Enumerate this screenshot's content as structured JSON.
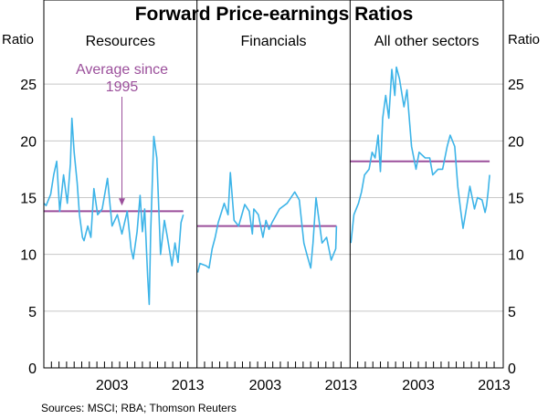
{
  "chart_data": {
    "type": "line",
    "title": "Forward Price-earnings Ratios",
    "ylabel_left": "Ratio",
    "ylabel_right": "Ratio",
    "ylim": [
      0,
      30
    ],
    "yticks": [
      0,
      5,
      10,
      15,
      20,
      25
    ],
    "xlim": [
      1994,
      2014.2
    ],
    "xtick_labels": [
      "2003",
      "2013"
    ],
    "xtick_label_years": [
      2003,
      2013
    ],
    "minor_ticks_years": [
      1995,
      2013
    ],
    "grid": true,
    "colors": {
      "series": "#3db4e8",
      "average": "#9b4f9b",
      "grid": "#c8c8c8"
    },
    "annotation": {
      "lines": [
        "Average since",
        "1995"
      ],
      "panel": 0,
      "arrow_year": 2004.3,
      "arrow_to": 14.3
    },
    "source": "Sources: MSCI; RBA; Thomson Reuters",
    "panels": [
      {
        "name": "Resources",
        "average": 13.8,
        "x": [
          1994.0,
          1994.3,
          1994.9,
          1995.3,
          1995.7,
          1996.1,
          1996.6,
          1997.1,
          1997.5,
          1997.7,
          1998.0,
          1998.4,
          1998.7,
          1999.1,
          1999.3,
          1999.8,
          2000.2,
          2000.6,
          2001.1,
          2001.7,
          2002.4,
          2003.0,
          2003.7,
          2004.3,
          2005.0,
          2005.5,
          2005.8,
          2006.3,
          2006.7,
          2007.0,
          2007.3,
          2007.7,
          2007.9,
          2008.1,
          2008.5,
          2008.9,
          2009.4,
          2009.9,
          2010.3,
          2010.9,
          2011.3,
          2011.7,
          2012.1,
          2012.4
        ],
        "y": [
          14.5,
          14.3,
          15.3,
          17,
          18.2,
          13.8,
          17,
          14.5,
          18,
          22,
          19,
          16.3,
          13.5,
          11.5,
          11.2,
          12.5,
          11.5,
          15.8,
          13.5,
          14,
          16.7,
          12.5,
          13.5,
          11.8,
          13.8,
          10.5,
          9.6,
          12,
          15.2,
          12,
          14,
          8,
          5.6,
          12,
          20.4,
          18.5,
          10,
          13,
          11.5,
          9,
          11,
          9.3,
          12.8,
          13.5
        ]
      },
      {
        "name": "Financials",
        "average": 12.5,
        "x": [
          1994.1,
          1994.4,
          1995.2,
          1995.6,
          1996.0,
          1996.4,
          1996.8,
          1997.6,
          1998.1,
          1998.4,
          1998.9,
          1999.5,
          2000.3,
          2000.9,
          2001.3,
          2001.5,
          2002.1,
          2002.7,
          2003.1,
          2003.5,
          2003.9,
          2004.9,
          2005.9,
          2006.9,
          2007.5,
          2008.1,
          2008.5,
          2009.0,
          2009.3,
          2009.7,
          2010.1,
          2010.5,
          2011.1,
          2011.7,
          2012.3,
          2012.4
        ],
        "y": [
          8.4,
          9.2,
          9,
          8.8,
          10.5,
          11.5,
          12.8,
          14.5,
          13.5,
          17.2,
          13,
          12.5,
          14.4,
          13.8,
          11.8,
          14,
          13.5,
          11.5,
          13,
          12.2,
          12.8,
          14,
          14.5,
          15.5,
          14.8,
          11,
          10,
          8.8,
          11,
          15,
          13,
          11,
          11.5,
          9.5,
          10.5,
          12.5
        ]
      },
      {
        "name": "All other sectors",
        "average": 18.2,
        "x": [
          1994.1,
          1994.5,
          1995.1,
          1995.5,
          1995.9,
          1996.5,
          1996.9,
          1997.3,
          1997.7,
          1998.0,
          1998.3,
          1998.7,
          1999.1,
          1999.5,
          1999.9,
          2000.1,
          2000.5,
          2001.1,
          2001.5,
          2002.1,
          2002.7,
          2003.1,
          2003.9,
          2004.5,
          2004.9,
          2005.6,
          2006.2,
          2006.8,
          2007.2,
          2007.8,
          2008.2,
          2008.6,
          2008.9,
          2009.2,
          2009.8,
          2010.4,
          2010.8,
          2011.4,
          2011.8,
          2012.0,
          2012.2,
          2012.4
        ],
        "y": [
          11,
          13.5,
          14.5,
          15.5,
          17,
          17.5,
          19,
          18.5,
          20.5,
          17.3,
          22,
          24,
          22,
          26.3,
          24,
          26.5,
          25.5,
          23,
          24.5,
          19.5,
          17.5,
          19,
          18.5,
          18.5,
          17,
          17.5,
          17.5,
          19.5,
          20.5,
          19.5,
          16,
          13.8,
          12.3,
          13.5,
          16,
          14,
          15,
          14.8,
          13.7,
          14.3,
          15.5,
          17
        ]
      }
    ]
  }
}
